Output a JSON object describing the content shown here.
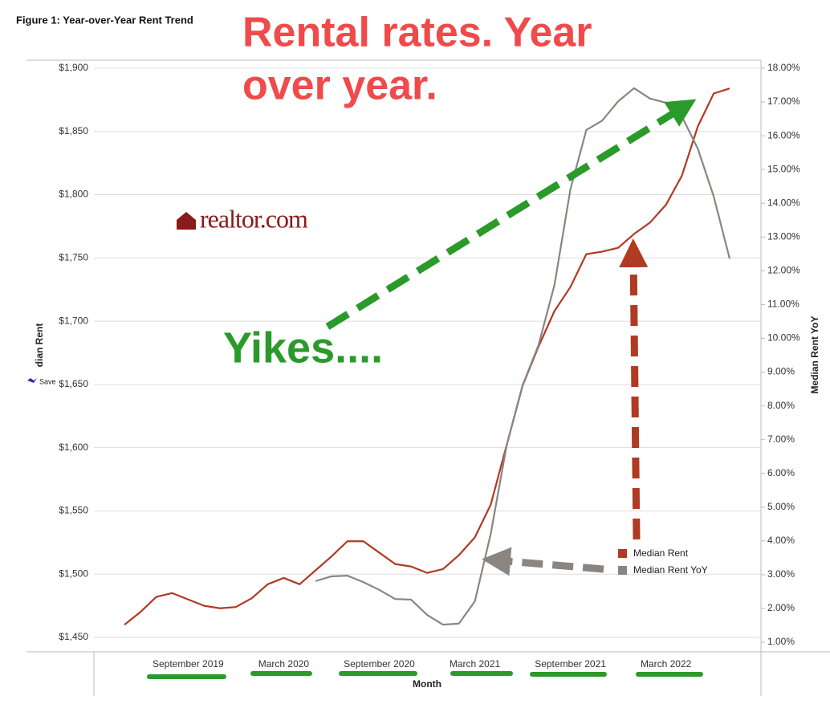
{
  "figure_title": "Figure 1: Year-over-Year Rent Trend",
  "headline": [
    "Rental rates.  Year",
    "over year."
  ],
  "exclamation": "Yikes....",
  "logo": "realtor.com",
  "save_label": "Save",
  "chart_data": {
    "type": "line",
    "x_label": "Month",
    "y_label": "dian Rent",
    "y2_label": "Median Rent YoY",
    "categories": [
      null,
      null,
      null,
      null,
      "September 2019",
      null,
      null,
      null,
      null,
      null,
      "March 2020",
      null,
      null,
      null,
      null,
      null,
      "September 2020",
      null,
      null,
      null,
      null,
      null,
      "March 2021",
      null,
      null,
      null,
      null,
      null,
      "September 2021",
      null,
      null,
      null,
      null,
      null,
      "March 2022",
      null,
      null,
      null,
      null
    ],
    "series": [
      {
        "name": "Median Rent",
        "color": "#b03a22",
        "values": [
          1460,
          1470,
          1482,
          1485,
          1480,
          1475,
          1473,
          1474,
          1481,
          1492,
          1497,
          1492,
          1503,
          1514,
          1526,
          1526,
          1517,
          1508,
          1506,
          1501,
          1504,
          1515,
          1529,
          1555,
          1602,
          1649,
          1680,
          1708,
          1727,
          1753,
          1755,
          1758,
          1769,
          1778,
          1792,
          1815,
          1854,
          1880,
          1884
        ]
      },
      {
        "name": "Median Rent YoY",
        "color": "#8a8580",
        "axis": "y2",
        "values": [
          null,
          null,
          null,
          null,
          null,
          null,
          null,
          null,
          null,
          null,
          null,
          null,
          2.81,
          2.95,
          2.97,
          2.78,
          2.55,
          2.28,
          2.26,
          1.81,
          1.52,
          1.55,
          2.21,
          4.21,
          6.83,
          8.61,
          9.8,
          11.58,
          14.41,
          16.17,
          16.45,
          17.02,
          17.41,
          17.1,
          16.98,
          16.57,
          15.62,
          14.2,
          12.36
        ]
      }
    ],
    "ylim": [
      1450,
      1900
    ],
    "yticks": [
      {
        "value": 1450,
        "label": "$1,450"
      },
      {
        "value": 1500,
        "label": "$1,500"
      },
      {
        "value": 1550,
        "label": "$1,550"
      },
      {
        "value": 1600,
        "label": "$1,600"
      },
      {
        "value": 1650,
        "label": "$1,650"
      },
      {
        "value": 1700,
        "label": "$1,700"
      },
      {
        "value": 1750,
        "label": "$1,750"
      },
      {
        "value": 1800,
        "label": "$1,800"
      },
      {
        "value": 1850,
        "label": "$1,850"
      },
      {
        "value": 1900,
        "label": "$1,900"
      }
    ],
    "y2lim": [
      1,
      18
    ],
    "y2ticks": [
      {
        "value": 1,
        "label": "1.00%"
      },
      {
        "value": 2,
        "label": "2.00%"
      },
      {
        "value": 3,
        "label": "3.00%"
      },
      {
        "value": 4,
        "label": "4.00%"
      },
      {
        "value": 5,
        "label": "5.00%"
      },
      {
        "value": 6,
        "label": "6.00%"
      },
      {
        "value": 7,
        "label": "7.00%"
      },
      {
        "value": 8,
        "label": "8.00%"
      },
      {
        "value": 9,
        "label": "9.00%"
      },
      {
        "value": 10,
        "label": "10.00%"
      },
      {
        "value": 11,
        "label": "11.00%"
      },
      {
        "value": 12,
        "label": "12.00%"
      },
      {
        "value": 13,
        "label": "13.00%"
      },
      {
        "value": 14,
        "label": "14.00%"
      },
      {
        "value": 15,
        "label": "15.00%"
      },
      {
        "value": 16,
        "label": "16.00%"
      },
      {
        "value": 17,
        "label": "17.00%"
      },
      {
        "value": 18,
        "label": "18.00%"
      }
    ],
    "grid": true
  }
}
